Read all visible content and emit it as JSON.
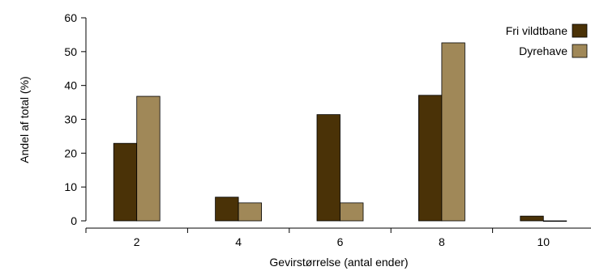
{
  "chart_data": {
    "type": "bar",
    "xlabel": "Gevirstørrelse (antal ender)",
    "ylabel": "Andel af total (%)",
    "ylim": [
      0,
      60
    ],
    "yticks": [
      0,
      10,
      20,
      30,
      40,
      50,
      60
    ],
    "categories": [
      "2",
      "4",
      "6",
      "8",
      "10"
    ],
    "series": [
      {
        "name": "Fri vildtbane",
        "color": "#4a3207",
        "values": [
          22.9,
          7.0,
          31.4,
          37.1,
          1.4
        ]
      },
      {
        "name": "Dyrehave",
        "color": "#a08858",
        "values": [
          36.8,
          5.3,
          5.3,
          52.6,
          0.0
        ]
      }
    ],
    "legend_position": "top-right",
    "grid": false
  }
}
